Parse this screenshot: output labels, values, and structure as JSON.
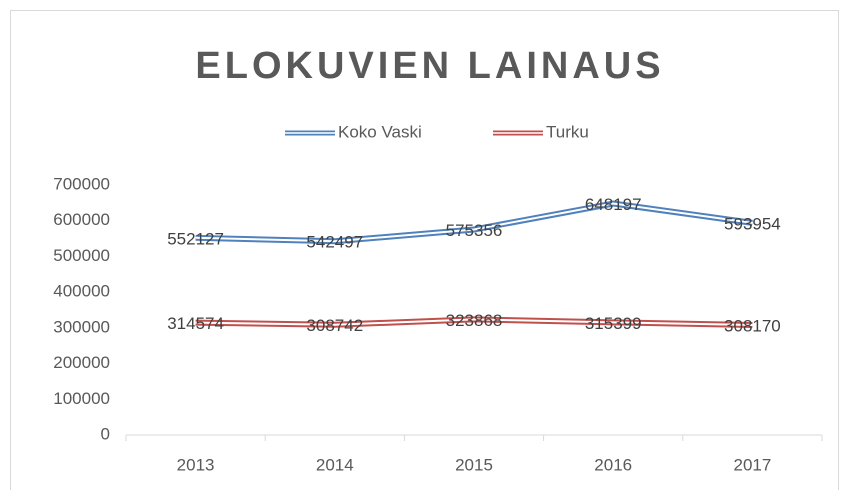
{
  "chart_data": {
    "type": "line",
    "title": "ELOKUVIEN LAINAUS",
    "categories": [
      "2013",
      "2014",
      "2015",
      "2016",
      "2017"
    ],
    "series": [
      {
        "name": "Koko Vaski",
        "color": "#4f81bd",
        "values": [
          552127,
          542497,
          575356,
          648197,
          593954
        ]
      },
      {
        "name": "Turku",
        "color": "#c0504d",
        "values": [
          314574,
          308742,
          323868,
          315399,
          308170
        ]
      }
    ],
    "ylim": [
      0,
      700000
    ],
    "yticks": [
      0,
      100000,
      200000,
      300000,
      400000,
      500000,
      600000,
      700000
    ],
    "grid": false,
    "legend": "top"
  }
}
